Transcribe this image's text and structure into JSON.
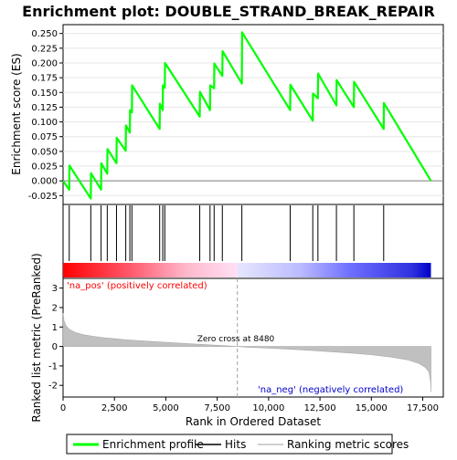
{
  "chart_data": {
    "type": "line",
    "title": "Enrichment plot: DOUBLE_STRAND_BREAK_REPAIR",
    "es_panel": {
      "ylabel": "Enrichment score (ES)",
      "ylim": [
        -0.04,
        0.265
      ],
      "yticks": [
        -0.025,
        0.0,
        0.025,
        0.05,
        0.075,
        0.1,
        0.125,
        0.15,
        0.175,
        0.2,
        0.225,
        0.25
      ],
      "ytick_labels": [
        "-0.025",
        "0.000",
        "0.025",
        "0.050",
        "0.075",
        "0.100",
        "0.125",
        "0.150",
        "0.175",
        "0.200",
        "0.225",
        "0.250"
      ],
      "series": [
        {
          "name": "Enrichment profile",
          "color": "#00ff00",
          "x": [
            0,
            300,
            310,
            1350,
            1360,
            1850,
            1860,
            2150,
            2160,
            2600,
            2610,
            3050,
            3060,
            3250,
            3260,
            3350,
            3360,
            4700,
            4710,
            4850,
            4860,
            4950,
            4960,
            6650,
            6660,
            7150,
            7160,
            7350,
            7360,
            7750,
            7760,
            8700,
            8710,
            11050,
            11060,
            12150,
            12160,
            12400,
            12410,
            13300,
            13310,
            14150,
            14160,
            15600,
            15610,
            17900
          ],
          "y": [
            0.0,
            -0.015,
            0.026,
            -0.03,
            0.013,
            -0.015,
            0.03,
            0.012,
            0.054,
            0.03,
            0.073,
            0.051,
            0.094,
            0.082,
            0.12,
            0.116,
            0.162,
            0.088,
            0.131,
            0.12,
            0.162,
            0.158,
            0.2,
            0.109,
            0.151,
            0.12,
            0.162,
            0.157,
            0.199,
            0.178,
            0.22,
            0.165,
            0.252,
            0.12,
            0.163,
            0.102,
            0.148,
            0.14,
            0.182,
            0.128,
            0.171,
            0.125,
            0.168,
            0.088,
            0.132,
            0.0
          ]
        }
      ]
    },
    "hits": [
      300,
      1350,
      1850,
      2150,
      2600,
      3050,
      3250,
      3350,
      4700,
      4850,
      4950,
      6650,
      7150,
      7350,
      7750,
      8700,
      11050,
      12150,
      12400,
      13300,
      14150,
      15600
    ],
    "colorbar": {
      "stops": [
        {
          "x": 0,
          "color": "#ff0000"
        },
        {
          "x": 3300,
          "color": "#ff5a6e"
        },
        {
          "x": 6000,
          "color": "#ffb8cc"
        },
        {
          "x": 8480,
          "color": "#ffe0f4"
        },
        {
          "x": 8500,
          "color": "#e6e6ff"
        },
        {
          "x": 11500,
          "color": "#bcbcff"
        },
        {
          "x": 14000,
          "color": "#6e6eff"
        },
        {
          "x": 17000,
          "color": "#3030e0"
        },
        {
          "x": 17900,
          "color": "#0000c8"
        }
      ],
      "pos_label": "'na_pos' (positively correlated)",
      "neg_label": "'na_neg' (negatively correlated)",
      "pos_color": "#ff0000",
      "neg_color": "#0000cc"
    },
    "ranked_panel": {
      "ylabel": "Ranked list metric (PreRanked)",
      "ylim": [
        -2.6,
        3.5
      ],
      "yticks": [
        -2,
        -1,
        0,
        1,
        2,
        3
      ],
      "ytick_labels": [
        "-2",
        "-1",
        "0",
        "1",
        "2",
        "3"
      ],
      "fill_color": "#c0c0c0",
      "profile_x": [
        0,
        50,
        150,
        300,
        600,
        1000,
        1500,
        2000,
        3000,
        4000,
        5000,
        6000,
        7000,
        8000,
        8480,
        9000,
        10000,
        11000,
        12000,
        13000,
        14000,
        15000,
        16000,
        16800,
        17300,
        17600,
        17800,
        17880,
        17900
      ],
      "profile_y": [
        1.72,
        1.3,
        1.05,
        0.88,
        0.72,
        0.6,
        0.52,
        0.45,
        0.35,
        0.28,
        0.21,
        0.15,
        0.09,
        0.03,
        0.0,
        -0.04,
        -0.09,
        -0.14,
        -0.2,
        -0.27,
        -0.34,
        -0.43,
        -0.55,
        -0.7,
        -0.87,
        -1.05,
        -1.3,
        -1.8,
        -2.35
      ],
      "zero_cross_label": "Zero cross at 8480",
      "zero_cross_x": 8480
    },
    "xaxis": {
      "xlabel": "Rank in Ordered Dataset",
      "xlim": [
        0,
        18500
      ],
      "xticks": [
        0,
        2500,
        5000,
        7500,
        10000,
        12500,
        15000,
        17500
      ],
      "xtick_labels": [
        "0",
        "2,500",
        "5,000",
        "7,500",
        "10,000",
        "12,500",
        "15,000",
        "17,500"
      ]
    },
    "legend": {
      "placement": "bottom",
      "items": [
        {
          "label": "Enrichment profile",
          "color": "#00ff00"
        },
        {
          "label": "Hits",
          "color": "#000000"
        },
        {
          "label": "Ranking metric scores",
          "color": "#c0c0c0"
        }
      ]
    }
  }
}
